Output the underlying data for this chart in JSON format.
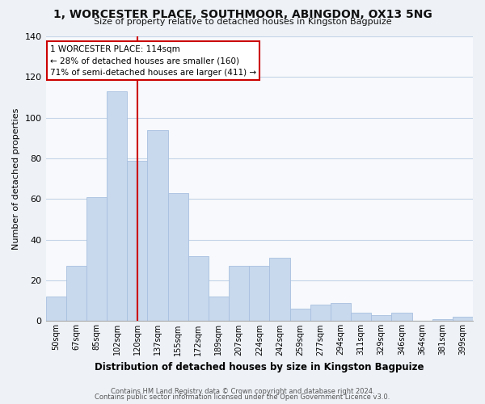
{
  "title": "1, WORCESTER PLACE, SOUTHMOOR, ABINGDON, OX13 5NG",
  "subtitle": "Size of property relative to detached houses in Kingston Bagpuize",
  "xlabel": "Distribution of detached houses by size in Kingston Bagpuize",
  "ylabel": "Number of detached properties",
  "bin_labels": [
    "50sqm",
    "67sqm",
    "85sqm",
    "102sqm",
    "120sqm",
    "137sqm",
    "155sqm",
    "172sqm",
    "189sqm",
    "207sqm",
    "224sqm",
    "242sqm",
    "259sqm",
    "277sqm",
    "294sqm",
    "311sqm",
    "329sqm",
    "346sqm",
    "364sqm",
    "381sqm",
    "399sqm"
  ],
  "bar_heights": [
    12,
    27,
    61,
    113,
    79,
    94,
    63,
    32,
    12,
    27,
    27,
    31,
    6,
    8,
    9,
    4,
    3,
    4,
    0,
    1,
    2
  ],
  "bar_color": "#c8d8ed",
  "bar_edge_color": "#a8c0df",
  "annotation_title": "1 WORCESTER PLACE: 114sqm",
  "annotation_line1": "← 28% of detached houses are smaller (160)",
  "annotation_line2": "71% of semi-detached houses are larger (411) →",
  "annotation_box_facecolor": "#ffffff",
  "annotation_box_edgecolor": "#cc0000",
  "vline_color": "#cc0000",
  "vline_x": 4.0,
  "ylim": [
    0,
    140
  ],
  "yticks": [
    0,
    20,
    40,
    60,
    80,
    100,
    120,
    140
  ],
  "footer1": "Contains HM Land Registry data © Crown copyright and database right 2024.",
  "footer2": "Contains public sector information licensed under the Open Government Licence v3.0.",
  "background_color": "#eef2f7",
  "plot_background_color": "#f7f9fc",
  "grid_color": "#c5d5e8"
}
